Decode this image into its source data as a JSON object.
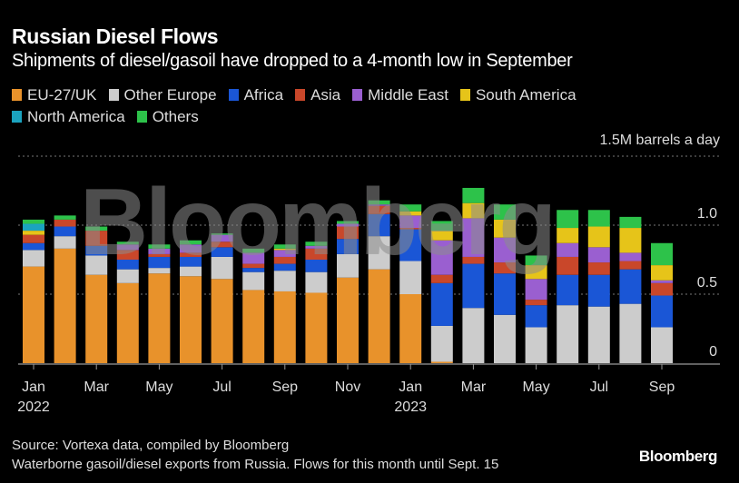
{
  "header": {
    "title": "Russian Diesel Flows",
    "subtitle": "Shipments of diesel/gasoil have dropped to a 4-month low in September"
  },
  "footer": {
    "source": "Source: Vortexa data, compiled by Bloomberg",
    "note": "Waterborne gasoil/diesel exports from Russia. Flows for this month until Sept. 15",
    "logo": "Bloomberg"
  },
  "watermark": "Bloomberg",
  "chart_data": {
    "type": "bar",
    "stacked": true,
    "title": "Russian Diesel Flows",
    "subtitle": "Shipments of diesel/gasoil have dropped to a 4-month low in September",
    "ylabel": "1.5M barrels a day",
    "ylim": [
      0,
      1.5
    ],
    "yticks": [
      {
        "value": 0,
        "label": "0"
      },
      {
        "value": 0.5,
        "label": "0.5"
      },
      {
        "value": 1.0,
        "label": "1.0"
      },
      {
        "value": 1.5,
        "label": "1.5M barrels a day"
      }
    ],
    "grid": true,
    "legend_position": "top-left",
    "categories": [
      "Jan 2022",
      "Feb 2022",
      "Mar 2022",
      "Apr 2022",
      "May 2022",
      "Jun 2022",
      "Jul 2022",
      "Aug 2022",
      "Sep 2022",
      "Oct 2022",
      "Nov 2022",
      "Dec 2022",
      "Jan 2023",
      "Feb 2023",
      "Mar 2023",
      "Apr 2023",
      "May 2023",
      "Jun 2023",
      "Jul 2023",
      "Aug 2023",
      "Sep 2023"
    ],
    "xtick_labels": [
      {
        "index": 0,
        "label": "Jan",
        "sublabel": "2022"
      },
      {
        "index": 2,
        "label": "Mar",
        "sublabel": ""
      },
      {
        "index": 4,
        "label": "May",
        "sublabel": ""
      },
      {
        "index": 6,
        "label": "Jul",
        "sublabel": ""
      },
      {
        "index": 8,
        "label": "Sep",
        "sublabel": ""
      },
      {
        "index": 10,
        "label": "Nov",
        "sublabel": ""
      },
      {
        "index": 12,
        "label": "Jan",
        "sublabel": "2023"
      },
      {
        "index": 14,
        "label": "Mar",
        "sublabel": ""
      },
      {
        "index": 16,
        "label": "May",
        "sublabel": ""
      },
      {
        "index": 18,
        "label": "Jul",
        "sublabel": ""
      },
      {
        "index": 20,
        "label": "Sep",
        "sublabel": ""
      }
    ],
    "series": [
      {
        "name": "EU-27/UK",
        "color": "#e8922b",
        "values": [
          0.7,
          0.83,
          0.64,
          0.58,
          0.65,
          0.63,
          0.61,
          0.53,
          0.52,
          0.51,
          0.62,
          0.68,
          0.5,
          0.01,
          0,
          0,
          0,
          0,
          0,
          0,
          0
        ]
      },
      {
        "name": "Other Europe",
        "color": "#cccccc",
        "values": [
          0.12,
          0.09,
          0.14,
          0.1,
          0.04,
          0.07,
          0.16,
          0.13,
          0.15,
          0.15,
          0.17,
          0.24,
          0.24,
          0.26,
          0.4,
          0.35,
          0.26,
          0.42,
          0.41,
          0.43,
          0.26
        ]
      },
      {
        "name": "Africa",
        "color": "#1a56d6",
        "values": [
          0.05,
          0.07,
          0.07,
          0.07,
          0.08,
          0.07,
          0.07,
          0.03,
          0.05,
          0.09,
          0.11,
          0.16,
          0.23,
          0.31,
          0.32,
          0.3,
          0.16,
          0.22,
          0.23,
          0.25,
          0.23
        ]
      },
      {
        "name": "Asia",
        "color": "#c9472a",
        "values": [
          0.06,
          0.05,
          0.11,
          0.07,
          0.02,
          0.03,
          0.04,
          0.03,
          0.05,
          0.08,
          0.09,
          0.06,
          0.01,
          0.06,
          0.05,
          0.08,
          0.04,
          0.13,
          0.09,
          0.06,
          0.09
        ]
      },
      {
        "name": "Middle East",
        "color": "#9a5fd0",
        "values": [
          0,
          0,
          0,
          0.04,
          0.04,
          0.06,
          0.05,
          0.08,
          0.05,
          0.02,
          0.02,
          0.01,
          0.09,
          0.25,
          0.28,
          0.18,
          0.15,
          0.1,
          0.11,
          0.06,
          0.02
        ]
      },
      {
        "name": "South America",
        "color": "#e6c419",
        "values": [
          0.03,
          0,
          0,
          0,
          0,
          0,
          0,
          0,
          0.01,
          0,
          0,
          0,
          0.03,
          0.07,
          0.11,
          0.13,
          0.1,
          0.11,
          0.15,
          0.18,
          0.11
        ]
      },
      {
        "name": "North America",
        "color": "#1ba3bf",
        "values": [
          0.05,
          0,
          0,
          0,
          0,
          0,
          0,
          0,
          0,
          0,
          0,
          0,
          0,
          0,
          0,
          0,
          0,
          0,
          0,
          0,
          0
        ]
      },
      {
        "name": "Others",
        "color": "#2dc24a",
        "values": [
          0.03,
          0.03,
          0.03,
          0.02,
          0.03,
          0.03,
          0.01,
          0.03,
          0.03,
          0.03,
          0.02,
          0.03,
          0.05,
          0.07,
          0.11,
          0.11,
          0.07,
          0.13,
          0.12,
          0.08,
          0.16
        ]
      }
    ]
  }
}
